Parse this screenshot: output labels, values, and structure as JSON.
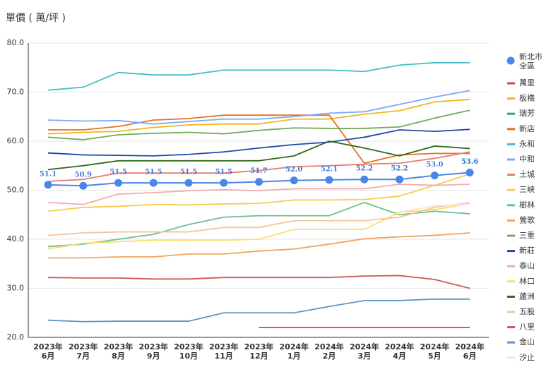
{
  "chart_data": {
    "type": "line",
    "y_axis_label": "單價 ( 萬/坪 )",
    "categories": [
      "2023年\n6月",
      "2023年\n7月",
      "2023年\n8月",
      "2023年\n9月",
      "2023年\n10月",
      "2023年\n11月",
      "2023年\n12月",
      "2024年\n1月",
      "2024年\n2月",
      "2024年\n3月",
      "2024年\n4月",
      "2024年\n5月",
      "2024年\n6月"
    ],
    "ylim": [
      20,
      80
    ],
    "yticks": [
      {
        "value": 20,
        "label": "20.0"
      },
      {
        "value": 30,
        "label": "30.0"
      },
      {
        "value": 40,
        "label": "40.0"
      },
      {
        "value": 50,
        "label": "50.0"
      },
      {
        "value": 60,
        "label": "60.0"
      },
      {
        "value": 70,
        "label": "70.0"
      },
      {
        "value": 80,
        "label": "80.0"
      }
    ],
    "grid": true,
    "legend": "right",
    "series": [
      {
        "name": "新北市\n全區",
        "color": "#4a86e8",
        "markers": true,
        "values": [
          51.1,
          50.9,
          51.5,
          51.5,
          51.5,
          51.5,
          51.7,
          52.0,
          52.1,
          52.2,
          52.2,
          53.0,
          53.6
        ],
        "value_labels": [
          "51.1",
          "50.9",
          "51.5",
          "51.5",
          "51.5",
          "51.5",
          "51.7",
          "52.0",
          "52.1",
          "52.2",
          "52.2",
          "53.0",
          "53.6"
        ]
      },
      {
        "name": "萬里",
        "color": "#d9473c",
        "values": [
          null,
          null,
          null,
          null,
          null,
          null,
          22.0,
          22.0,
          22.0,
          22.0,
          22.0,
          22.0,
          22.0
        ]
      },
      {
        "name": "板橋",
        "color": "#f2b619",
        "values": [
          61.5,
          61.8,
          62.0,
          62.8,
          63.3,
          63.5,
          63.5,
          64.5,
          64.5,
          65.5,
          66.2,
          68.0,
          68.5
        ]
      },
      {
        "name": "瑞芳",
        "color": "#34a853",
        "values": [
          null,
          null,
          null,
          null,
          null,
          null,
          null,
          null,
          null,
          null,
          null,
          null,
          null
        ]
      },
      {
        "name": "新店",
        "color": "#e8711c",
        "values": [
          62.3,
          62.3,
          63.0,
          64.3,
          64.6,
          65.3,
          65.3,
          65.3,
          65.3,
          55.5,
          57.2,
          57.5,
          57.5
        ]
      },
      {
        "name": "永和",
        "color": "#46bdc6",
        "values": [
          70.4,
          71.0,
          74.0,
          73.5,
          73.5,
          74.5,
          74.5,
          74.5,
          74.5,
          74.2,
          75.5,
          76.0,
          76.0
        ]
      },
      {
        "name": "中和",
        "color": "#7baaf7",
        "values": [
          64.3,
          64.1,
          64.2,
          63.5,
          64.0,
          64.5,
          64.5,
          65.0,
          65.7,
          66.0,
          67.5,
          69.0,
          70.3
        ]
      },
      {
        "name": "土城",
        "color": "#e77c73",
        "values": [
          51.8,
          52.2,
          53.5,
          53.5,
          53.5,
          53.5,
          54.0,
          54.8,
          55.0,
          55.3,
          55.5,
          56.5,
          57.8
        ]
      },
      {
        "name": "三峽",
        "color": "#f7cb4d",
        "values": [
          45.7,
          46.5,
          46.7,
          47.1,
          47.0,
          47.2,
          47.3,
          48.0,
          48.0,
          48.1,
          48.8,
          51.0,
          53.3
        ]
      },
      {
        "name": "樹林",
        "color": "#6cc08b",
        "values": [
          38.5,
          39.0,
          40.0,
          41.0,
          43.0,
          44.5,
          44.8,
          44.8,
          44.8,
          47.5,
          45.0,
          45.7,
          45.2
        ]
      },
      {
        "name": "鶯歌",
        "color": "#f0a45c",
        "values": [
          36.2,
          36.2,
          36.4,
          36.4,
          37.0,
          37.0,
          37.6,
          38.0,
          39.0,
          40.1,
          40.5,
          40.8,
          41.3
        ]
      },
      {
        "name": "三重",
        "color": "#71ab58",
        "values": [
          60.8,
          60.3,
          61.3,
          61.6,
          61.8,
          61.5,
          62.2,
          62.7,
          62.6,
          62.6,
          62.9,
          64.7,
          66.3
        ]
      },
      {
        "name": "新莊",
        "color": "#1c4aa8",
        "values": [
          57.6,
          57.2,
          57.1,
          57.0,
          57.3,
          57.8,
          58.6,
          59.3,
          59.8,
          60.8,
          62.3,
          62.0,
          62.4
        ]
      },
      {
        "name": "泰山",
        "color": "#eeadb0",
        "values": [
          47.5,
          47.1,
          49.2,
          49.5,
          49.9,
          50.1,
          49.9,
          50.3,
          50.3,
          50.3,
          51.2,
          51.0,
          51.2
        ]
      },
      {
        "name": "林口",
        "color": "#fbde6b",
        "values": [
          38.0,
          39.2,
          39.5,
          39.8,
          39.8,
          39.8,
          40.0,
          42.0,
          42.0,
          42.0,
          45.5,
          46.0,
          47.3
        ]
      },
      {
        "name": "蘆洲",
        "color": "#2d6b17",
        "values": [
          54.2,
          55.0,
          56.0,
          56.0,
          56.0,
          56.0,
          56.0,
          57.0,
          60.0,
          58.6,
          57.0,
          59.0,
          58.5
        ]
      },
      {
        "name": "五股",
        "color": "#f6c49a",
        "values": [
          40.8,
          41.3,
          41.5,
          41.5,
          41.5,
          42.4,
          42.4,
          43.8,
          43.8,
          43.8,
          44.5,
          46.5,
          47.5
        ]
      },
      {
        "name": "八里",
        "color": "#cd5a57",
        "values": [
          32.2,
          32.1,
          32.1,
          31.9,
          31.9,
          32.2,
          32.2,
          32.2,
          32.2,
          32.5,
          32.6,
          31.8,
          30.0
        ]
      },
      {
        "name": "金山",
        "color": "#5b95c9",
        "values": [
          23.5,
          23.2,
          23.3,
          23.3,
          23.3,
          25.0,
          25.0,
          25.0,
          26.3,
          27.5,
          27.5,
          27.8,
          27.8
        ]
      },
      {
        "name": "汐止",
        "color": "#fbe1e1",
        "values": [
          null,
          null,
          null,
          null,
          null,
          null,
          null,
          null,
          null,
          null,
          45.5,
          46.8,
          47.2
        ]
      }
    ]
  }
}
